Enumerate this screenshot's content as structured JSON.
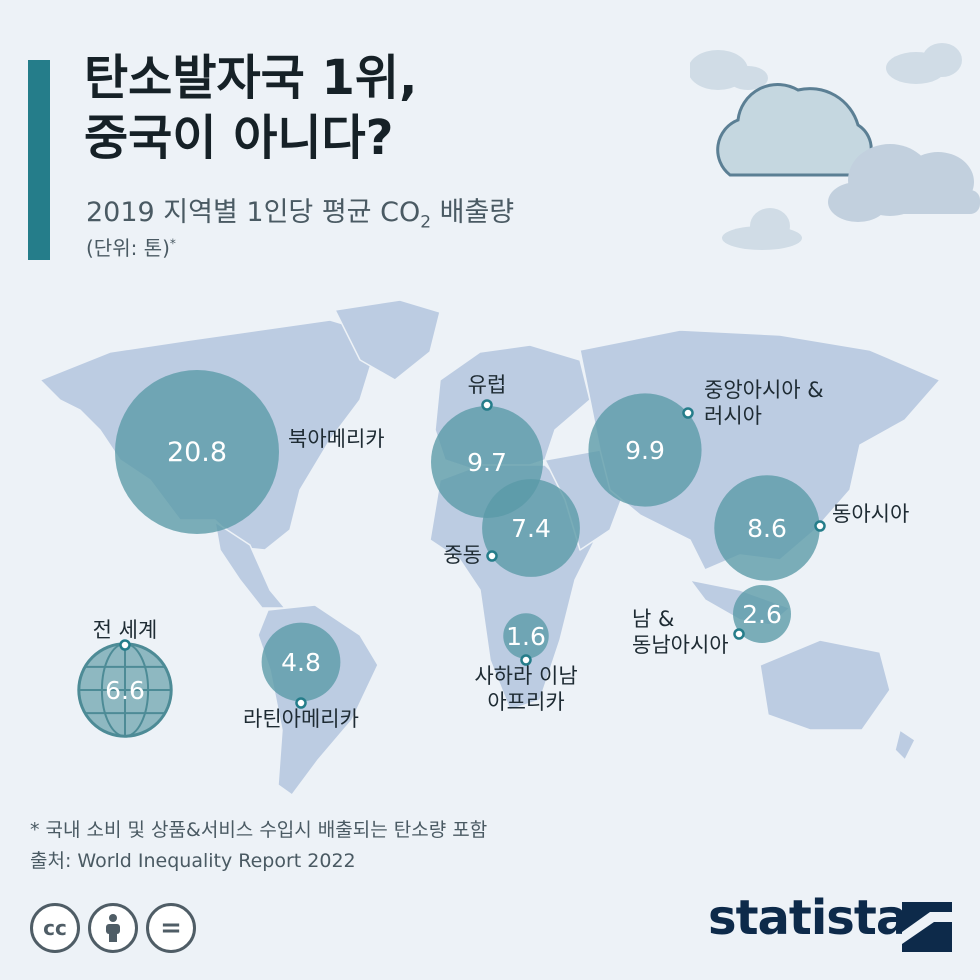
{
  "title_line1": "탄소발자국 1위,",
  "title_line2": "중국이 아니다?",
  "subtitle_main": "2019 지역별 1인당 평균 CO",
  "subtitle_sub": "2",
  "subtitle_end": " 배출량",
  "unit_main": "(단위: 톤)",
  "unit_mark": "*",
  "footnote": "* 국내 소비 및 상품&서비스 수입시 배출되는 탄소량 포함",
  "source": "출처: World Inequality Report 2022",
  "brand": "statista",
  "license": {
    "cc": "cc",
    "nd": "="
  },
  "colors": {
    "accent": "#257d8a",
    "bubble": "#5a9aa6",
    "land": "#bccce2",
    "cloud": "#c5d7e0",
    "background": "#edf2f7"
  },
  "chart_data": {
    "type": "bubble",
    "title": "탄소발자국 1위, 중국이 아니다?",
    "subtitle": "2019 지역별 1인당 평균 CO2 배출량",
    "unit": "(단위: 톤)",
    "categories": [
      "북아메리카",
      "유럽",
      "중앙아시아 & 러시아",
      "중동",
      "동아시아",
      "남 & 동남아시아",
      "사하라 이남 아프리카",
      "라틴아메리카",
      "전 세계"
    ],
    "values": [
      20.8,
      9.7,
      9.9,
      7.4,
      8.6,
      2.6,
      1.6,
      4.8,
      6.6
    ],
    "labels": [
      "20.8",
      "9.7",
      "9.9",
      "7.4",
      "8.6",
      "2.6",
      "1.6",
      "4.8",
      "6.6"
    ],
    "label_lines": [
      [
        "북아메리카"
      ],
      [
        "유럽"
      ],
      [
        "중앙아시아 &",
        "러시아"
      ],
      [
        "중동"
      ],
      [
        "동아시아"
      ],
      [
        "남 &",
        "동남아시아"
      ],
      [
        "사하라 이남",
        "아프리카"
      ],
      [
        "라틴아메리카"
      ],
      [
        "전 세계"
      ]
    ]
  }
}
